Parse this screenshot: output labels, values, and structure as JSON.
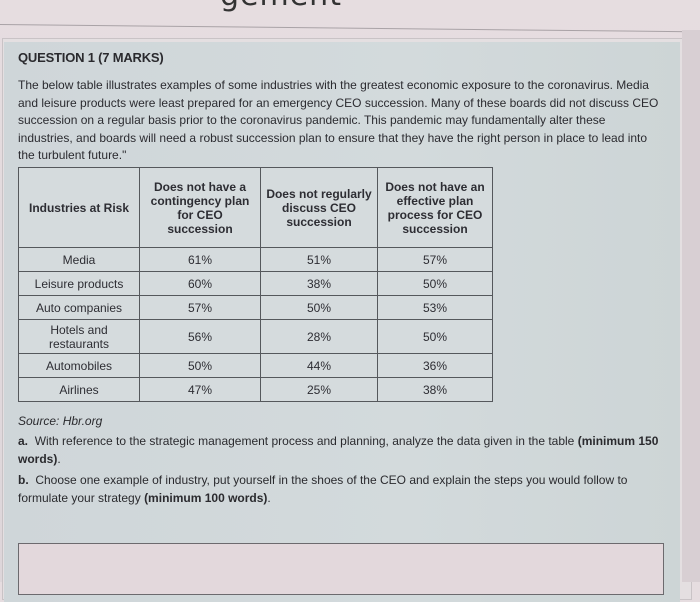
{
  "page": {
    "title_fragment": "gement"
  },
  "question": {
    "heading": "QUESTION 1 (7 MARKS)",
    "intro_lines": [
      "The below table illustrates examples of some industries with the greatest economic exposure to the coronavirus. Media",
      "and leisure products were least prepared for an emergency CEO succession. Many of these boards did not discuss CEO",
      "succession on a regular basis prior to the coronavirus pandemic. This pandemic may fundamentally alter these",
      "industries, and boards will need a robust succession plan to ensure that they have the right person in place to lead into",
      "the turbulent future.\""
    ]
  },
  "table": {
    "headers": [
      "Industries at Risk",
      "Does not have a contingency plan for CEO succession",
      "Does not regularly discuss CEO succession",
      "Does not have an effective plan process for CEO succession"
    ],
    "rows": [
      [
        "Media",
        "61%",
        "51%",
        "57%"
      ],
      [
        "Leisure products",
        "60%",
        "38%",
        "50%"
      ],
      [
        "Auto companies",
        "57%",
        "50%",
        "53%"
      ],
      [
        "Hotels and restaurants",
        "56%",
        "28%",
        "50%"
      ],
      [
        "Automobiles",
        "50%",
        "44%",
        "36%"
      ],
      [
        "Airlines",
        "47%",
        "25%",
        "38%"
      ]
    ]
  },
  "source": "Source: Hbr.org",
  "parts": {
    "a": {
      "label": "a.",
      "text": "With reference to the strategic management process and planning, analyze the data given in the table",
      "bold": "(minimum 150 words)",
      "tail": "."
    },
    "b": {
      "label": "b.",
      "text": "Choose one example of industry, put yourself in the shoes of the CEO and explain the steps you would follow to formulate your strategy",
      "bold": "(minimum 100 words)",
      "tail": "."
    }
  },
  "answer": {
    "value": ""
  }
}
